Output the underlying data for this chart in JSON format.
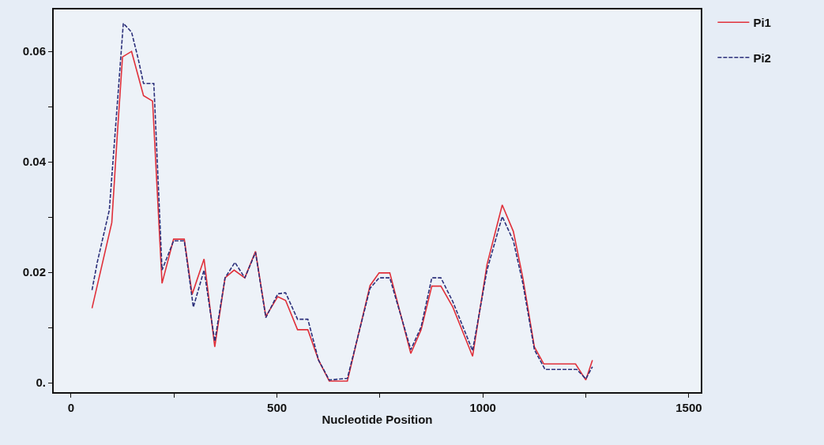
{
  "chart_data": {
    "type": "line",
    "xlabel": "Nucleotide Position",
    "xlim": [
      -42,
      1529
    ],
    "ylim": [
      -0.0017,
      0.0676
    ],
    "xticks": [
      0,
      {
        "value": 250,
        "label": null
      },
      500,
      {
        "value": 750,
        "label": null
      },
      1000,
      {
        "value": 1250,
        "label": null
      },
      1500
    ],
    "yticks": [
      {
        "value": 0,
        "label": "0."
      },
      {
        "value": 0.01,
        "label": null
      },
      {
        "value": 0.02,
        "label": "0.02"
      },
      {
        "value": 0.03,
        "label": null
      },
      {
        "value": 0.04,
        "label": "0.04"
      },
      {
        "value": 0.05,
        "label": null
      },
      {
        "value": 0.06,
        "label": "0.06"
      }
    ],
    "grid": false,
    "legend": "top right",
    "marker": "none",
    "series": [
      {
        "name": "Pi1",
        "color": "#e0303a",
        "line_style": "solid",
        "x": [
          51,
          99,
          112,
          125,
          147,
          176,
          198,
          221,
          249,
          275,
          294,
          323,
          349,
          374,
          396,
          422,
          448,
          473,
          502,
          521,
          550,
          575,
          601,
          627,
          671,
          726,
          748,
          774,
          825,
          850,
          876,
          898,
          927,
          975,
          1010,
          1047,
          1074,
          1097,
          1125,
          1148,
          1225,
          1250,
          1266
        ],
        "values": [
          0.0135,
          0.029,
          0.0445,
          0.059,
          0.06,
          0.052,
          0.051,
          0.018,
          0.026,
          0.026,
          0.016,
          0.0224,
          0.0065,
          0.019,
          0.0204,
          0.019,
          0.0238,
          0.012,
          0.0156,
          0.0149,
          0.0096,
          0.0096,
          0.0041,
          0.0003,
          0.0003,
          0.0176,
          0.0199,
          0.0199,
          0.0053,
          0.0096,
          0.0175,
          0.0175,
          0.0137,
          0.0048,
          0.0214,
          0.0322,
          0.0274,
          0.019,
          0.0065,
          0.0034,
          0.0034,
          0.0005,
          0.0041
        ]
      },
      {
        "name": "Pi2",
        "color": "#2b2f7a",
        "line_style": "dashed",
        "x": [
          51,
          64,
          93,
          115,
          127,
          147,
          163,
          176,
          201,
          203,
          221,
          249,
          275,
          297,
          323,
          349,
          374,
          398,
          422,
          448,
          473,
          502,
          521,
          550,
          575,
          601,
          627,
          671,
          726,
          748,
          774,
          825,
          850,
          876,
          898,
          927,
          975,
          1010,
          1047,
          1074,
          1097,
          1125,
          1151,
          1228,
          1250,
          1266
        ],
        "values": [
          0.0168,
          0.0219,
          0.0313,
          0.0531,
          0.0651,
          0.0635,
          0.0587,
          0.0542,
          0.0542,
          0.051,
          0.0204,
          0.0257,
          0.0257,
          0.0137,
          0.0204,
          0.0075,
          0.019,
          0.0218,
          0.019,
          0.0236,
          0.0118,
          0.0161,
          0.0163,
          0.0115,
          0.0115,
          0.0041,
          0.0005,
          0.0008,
          0.0171,
          0.019,
          0.019,
          0.006,
          0.0101,
          0.019,
          0.019,
          0.0147,
          0.0058,
          0.0204,
          0.0301,
          0.0257,
          0.018,
          0.006,
          0.0024,
          0.0024,
          0.0007,
          0.0029
        ]
      }
    ]
  }
}
